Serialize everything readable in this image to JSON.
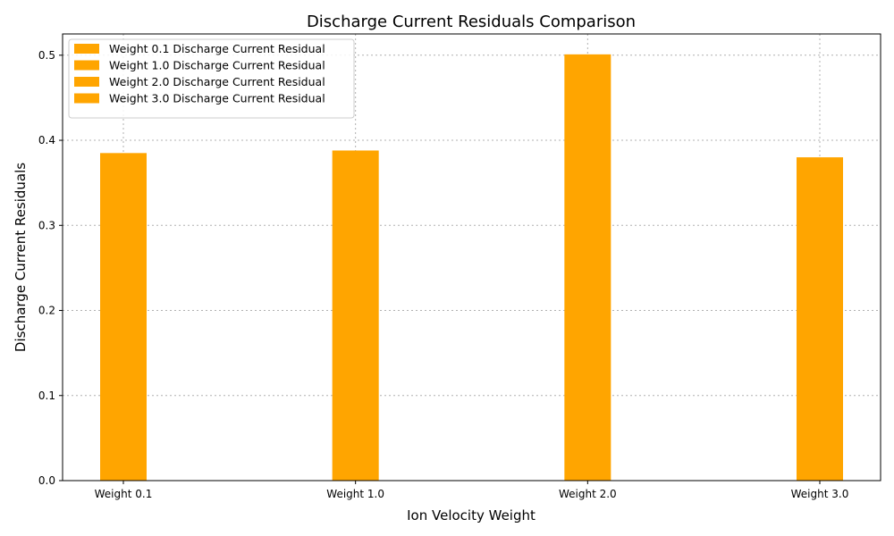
{
  "chart_data": {
    "type": "bar",
    "title": "Discharge Current Residuals Comparison",
    "xlabel": "Ion Velocity Weight",
    "ylabel": "Discharge Current Residuals",
    "categories": [
      "Weight 0.1",
      "Weight 1.0",
      "Weight 2.0",
      "Weight 3.0"
    ],
    "series": [
      {
        "name": "Weight 0.1 Discharge Current Residual",
        "values": [
          0.385,
          null,
          null,
          null
        ]
      },
      {
        "name": "Weight 1.0 Discharge Current Residual",
        "values": [
          null,
          0.388,
          null,
          null
        ]
      },
      {
        "name": "Weight 2.0 Discharge Current Residual",
        "values": [
          null,
          null,
          0.501,
          null
        ]
      },
      {
        "name": "Weight 3.0 Discharge Current Residual",
        "values": [
          null,
          null,
          null,
          0.38
        ]
      }
    ],
    "ylim": [
      0,
      0.525
    ],
    "yticks": [
      0.0,
      0.1,
      0.2,
      0.3,
      0.4,
      0.5
    ],
    "ytick_labels": [
      "0.0",
      "0.1",
      "0.2",
      "0.3",
      "0.4",
      "0.5"
    ],
    "grid": true,
    "legend_position": "top-left",
    "bar_color": "#FFA500",
    "grid_color": "#b0b0b0"
  }
}
